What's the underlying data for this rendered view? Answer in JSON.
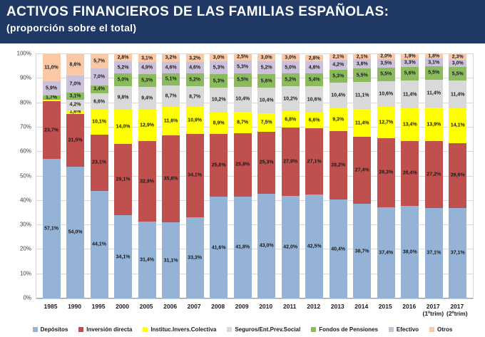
{
  "header": {
    "title": "ACTIVOS FINANCIEROS DE LAS FAMILIAS ESPAÑOLAS:",
    "subtitle": "(proporción sobre el total)",
    "bg_color": "#1F3864",
    "text_color": "#FFFFFF"
  },
  "chart_data": {
    "type": "bar",
    "stacked": true,
    "percent_of_total": true,
    "title": "ACTIVOS FINANCIEROS DE LAS FAMILIAS ESPAÑOLAS:",
    "subtitle": "(proporción sobre el total)",
    "ylim": [
      0,
      100
    ],
    "grid": true,
    "legend_position": "bottom",
    "y_ticks": [
      "0%",
      "10%",
      "20%",
      "30%",
      "40%",
      "50%",
      "60%",
      "70%",
      "80%",
      "90%",
      "100%"
    ],
    "categories": [
      "1985",
      "1990",
      "1995",
      "2000",
      "2005",
      "2006",
      "2007",
      "2008",
      "2009",
      "2010",
      "2011",
      "2012",
      "2013",
      "2014",
      "2015",
      "2016",
      "2017\n(1ºtrim)",
      "2017\n(2ºtrim)"
    ],
    "series": [
      {
        "name": "Depósitos",
        "color": "#95B3D7",
        "values": [
          57.1,
          54.0,
          44.1,
          34.1,
          31.4,
          31.1,
          33.3,
          41.6,
          41.8,
          43.0,
          42.0,
          42.5,
          40.4,
          38.7,
          37.4,
          38.0,
          37.1,
          37.1
        ],
        "labels": [
          "57,1%",
          "54,0%",
          "44,1%",
          "34,1%",
          "31,4%",
          "31,1%",
          "33,3%",
          "41,6%",
          "41,8%",
          "43,0%",
          "42,0%",
          "42,5%",
          "40,4%",
          "38,7%",
          "37,4%",
          "38,0%",
          "37,1%",
          "37,1%"
        ]
      },
      {
        "name": "Inversión directa",
        "color": "#C0504D",
        "values": [
          23.7,
          21.5,
          23.1,
          29.1,
          32.9,
          35.8,
          34.1,
          25.8,
          25.8,
          25.3,
          27.9,
          27.1,
          28.2,
          27.4,
          28.3,
          26.4,
          27.2,
          26.6
        ],
        "labels": [
          "23,7%",
          "21,5%",
          "23,1%",
          "29,1%",
          "32,9%",
          "35,8%",
          "34,1%",
          "25,8%",
          "25,8%",
          "25,3%",
          "27,9%",
          "27,1%",
          "28,2%",
          "27,4%",
          "28,3%",
          "26,4%",
          "27,2%",
          "26,6%"
        ]
      },
      {
        "name": "Instituc.Invers.Colectiva",
        "color": "#FFFF00",
        "values": [
          0.6,
          1.6,
          10.1,
          14.0,
          12.9,
          11.6,
          10.9,
          8.9,
          8.7,
          7.5,
          6.8,
          6.6,
          9.3,
          11.4,
          12.7,
          13.4,
          13.9,
          14.1
        ],
        "labels": [
          "",
          "1,6%",
          "10,1%",
          "14,0%",
          "12,9%",
          "11,6%",
          "10,9%",
          "8,9%",
          "8,7%",
          "7,5%",
          "6,8%",
          "6,6%",
          "9,3%",
          "11,4%",
          "12,7%",
          "13,4%",
          "13,9%",
          "14,1%"
        ]
      },
      {
        "name": "Seguros/Ent.Prev.Social",
        "color": "#D9D9D9",
        "values": [
          0.0,
          4.2,
          6.6,
          9.8,
          9.4,
          8.7,
          8.7,
          10.2,
          10.4,
          10.4,
          10.2,
          10.6,
          10.4,
          11.1,
          10.6,
          11.4,
          11.4,
          11.4
        ],
        "labels": [
          "",
          "4,2%",
          "6,6%",
          "9,8%",
          "9,4%",
          "8,7%",
          "8,7%",
          "10,2%",
          "10,4%",
          "10,4%",
          "10,2%",
          "10,6%",
          "10,4%",
          "11,1%",
          "10,6%",
          "11,4%",
          "11,4%",
          "11,4%"
        ]
      },
      {
        "name": "Fondos de Pensiones",
        "color": "#8CBB5E",
        "values": [
          1.7,
          3.1,
          3.4,
          5.0,
          5.3,
          5.1,
          5.2,
          5.3,
          5.5,
          5.6,
          5.2,
          5.4,
          5.3,
          5.5,
          5.5,
          5.6,
          5.5,
          5.5
        ],
        "labels": [
          "1,7%",
          "3,1%",
          "3,4%",
          "5,0%",
          "5,3%",
          "5,1%",
          "5,2%",
          "5,3%",
          "5,5%",
          "5,6%",
          "5,2%",
          "5,4%",
          "5,3%",
          "5,5%",
          "5,5%",
          "5,6%",
          "5,5%",
          "5,5%"
        ]
      },
      {
        "name": "Efectivo",
        "color": "#CCC1DA",
        "values": [
          5.9,
          7.0,
          7.0,
          5.2,
          4.9,
          4.6,
          4.6,
          5.3,
          5.3,
          5.2,
          5.0,
          4.8,
          4.2,
          3.8,
          3.5,
          3.3,
          3.1,
          3.0
        ],
        "labels": [
          "5,9%",
          "7,0%",
          "7,0%",
          "5,2%",
          "4,9%",
          "4,6%",
          "4,6%",
          "5,3%",
          "5,3%",
          "5,2%",
          "5,0%",
          "4,8%",
          "4,2%",
          "3,8%",
          "3,5%",
          "3,3%",
          "3,1%",
          "3,0%"
        ]
      },
      {
        "name": "Otros",
        "color": "#FAC8A4",
        "values": [
          11.0,
          8.6,
          5.7,
          2.8,
          3.1,
          3.2,
          3.2,
          3.0,
          2.5,
          3.0,
          3.0,
          2.8,
          2.1,
          2.1,
          2.0,
          1.9,
          1.8,
          2.3
        ],
        "labels": [
          "11,0%",
          "8,6%",
          "5,7%",
          "2,8%",
          "3,1%",
          "3,2%",
          "3,2%",
          "3,0%",
          "2,5%",
          "3,0%",
          "3,0%",
          "2,8%",
          "2,1%",
          "2,1%",
          "2,0%",
          "1,9%",
          "1,8%",
          "2,3%"
        ]
      }
    ]
  }
}
